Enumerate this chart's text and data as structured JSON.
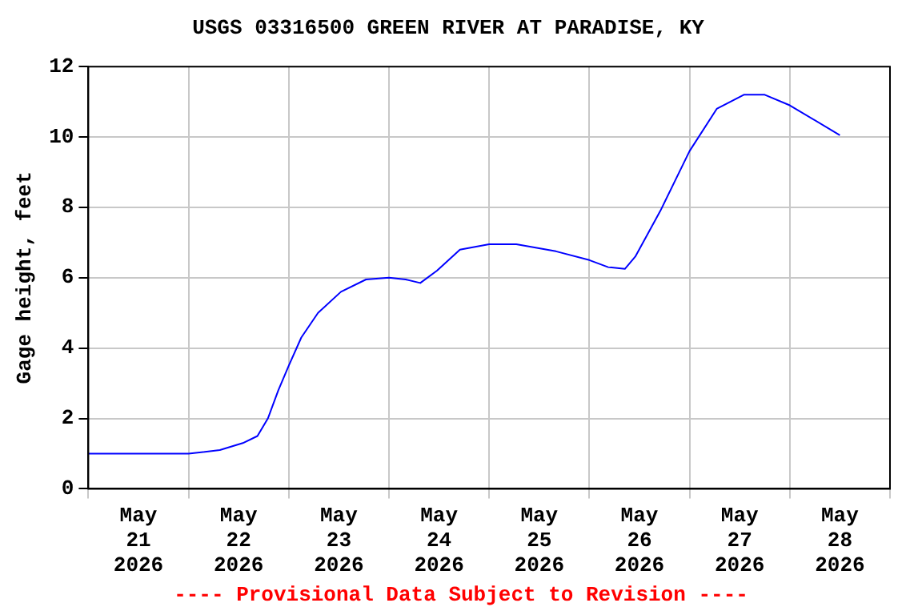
{
  "chart_data": {
    "type": "line",
    "title": "USGS 03316500 GREEN RIVER AT PARADISE, KY",
    "ylabel": "Gage height, feet",
    "annotations": [
      "---- Provisional Data Subject to Revision ----"
    ],
    "x": [
      "2026-05-21T00:00",
      "2026-05-21T14:00",
      "2026-05-22T00:00",
      "2026-05-22T07:30",
      "2026-05-22T13:00",
      "2026-05-22T16:30",
      "2026-05-22T19:00",
      "2026-05-22T21:30",
      "2026-05-23T00:00",
      "2026-05-23T03:00",
      "2026-05-23T07:00",
      "2026-05-23T12:30",
      "2026-05-23T18:30",
      "2026-05-24T00:00",
      "2026-05-24T04:00",
      "2026-05-24T07:30",
      "2026-05-24T11:30",
      "2026-05-24T17:00",
      "2026-05-25T00:00",
      "2026-05-25T06:30",
      "2026-05-25T16:00",
      "2026-05-26T00:00",
      "2026-05-26T04:30",
      "2026-05-26T08:30",
      "2026-05-26T11:00",
      "2026-05-26T17:00",
      "2026-05-27T00:00",
      "2026-05-27T06:30",
      "2026-05-27T13:00",
      "2026-05-27T18:00",
      "2026-05-28T00:00",
      "2026-05-28T12:00"
    ],
    "series": [
      {
        "color": "#0000ff",
        "values": [
          1.0,
          1.0,
          1.0,
          1.1,
          1.3,
          1.5,
          2.0,
          2.8,
          3.5,
          4.3,
          5.0,
          5.6,
          5.95,
          6.0,
          5.95,
          5.85,
          6.2,
          6.8,
          6.95,
          6.95,
          6.75,
          6.5,
          6.3,
          6.25,
          6.6,
          7.9,
          9.6,
          10.8,
          11.2,
          11.2,
          10.9,
          10.05
        ]
      }
    ],
    "xlim": [
      "2026-05-21T00:00",
      "2026-05-29T00:00"
    ],
    "xticks": [
      {
        "value": "2026-05-21T00:00",
        "label": null
      },
      {
        "value": "2026-05-21T12:00",
        "label": "May\n21\n2026"
      },
      {
        "value": "2026-05-22T00:00",
        "label": null
      },
      {
        "value": "2026-05-22T12:00",
        "label": "May\n22\n2026"
      },
      {
        "value": "2026-05-23T00:00",
        "label": null
      },
      {
        "value": "2026-05-23T12:00",
        "label": "May\n23\n2026"
      },
      {
        "value": "2026-05-24T00:00",
        "label": null
      },
      {
        "value": "2026-05-24T12:00",
        "label": "May\n24\n2026"
      },
      {
        "value": "2026-05-25T00:00",
        "label": null
      },
      {
        "value": "2026-05-25T12:00",
        "label": "May\n25\n2026"
      },
      {
        "value": "2026-05-26T00:00",
        "label": null
      },
      {
        "value": "2026-05-26T12:00",
        "label": "May\n26\n2026"
      },
      {
        "value": "2026-05-27T00:00",
        "label": null
      },
      {
        "value": "2026-05-27T12:00",
        "label": "May\n27\n2026"
      },
      {
        "value": "2026-05-28T00:00",
        "label": null
      },
      {
        "value": "2026-05-28T12:00",
        "label": "May\n28\n2026"
      },
      {
        "value": "2026-05-29T00:00",
        "label": null
      }
    ],
    "ylim": [
      0,
      12
    ],
    "yticks": [
      0,
      2,
      4,
      6,
      8,
      10,
      12
    ],
    "grid": true,
    "legend": false,
    "marker": "none",
    "line_style": "solid"
  }
}
